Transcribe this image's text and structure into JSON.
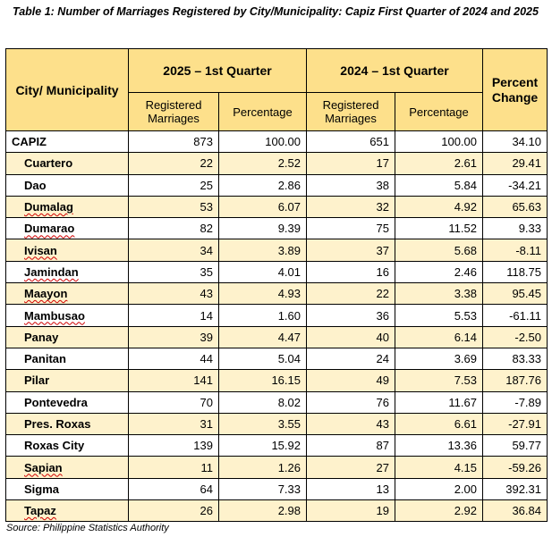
{
  "title": "Table 1: Number of Marriages Registered by City/Municipality: Capiz First Quarter of 2024 and 2025",
  "headers": {
    "city": "City/ Municipality",
    "group_2025": "2025 – 1st Quarter",
    "group_2024": "2024 – 1st Quarter",
    "percent_change": "Percent Change",
    "registered": "Registered Marriages",
    "percentage": "Percentage"
  },
  "rows": [
    {
      "name": "CAPIZ",
      "r2025": "873",
      "p2025": "100.00",
      "r2024": "651",
      "p2024": "100.00",
      "change": "34.10"
    },
    {
      "name": "Cuartero",
      "r2025": "22",
      "p2025": "2.52",
      "r2024": "17",
      "p2024": "2.61",
      "change": "29.41"
    },
    {
      "name": "Dao",
      "r2025": "25",
      "p2025": "2.86",
      "r2024": "38",
      "p2024": "5.84",
      "change": "-34.21"
    },
    {
      "name": "Dumalag",
      "r2025": "53",
      "p2025": "6.07",
      "r2024": "32",
      "p2024": "4.92",
      "change": "65.63"
    },
    {
      "name": "Dumarao",
      "r2025": "82",
      "p2025": "9.39",
      "r2024": "75",
      "p2024": "11.52",
      "change": "9.33"
    },
    {
      "name": "Ivisan",
      "r2025": "34",
      "p2025": "3.89",
      "r2024": "37",
      "p2024": "5.68",
      "change": "-8.11"
    },
    {
      "name": "Jamindan",
      "r2025": "35",
      "p2025": "4.01",
      "r2024": "16",
      "p2024": "2.46",
      "change": "118.75"
    },
    {
      "name": "Maayon",
      "r2025": "43",
      "p2025": "4.93",
      "r2024": "22",
      "p2024": "3.38",
      "change": "95.45"
    },
    {
      "name": "Mambusao",
      "r2025": "14",
      "p2025": "1.60",
      "r2024": "36",
      "p2024": "5.53",
      "change": "-61.11"
    },
    {
      "name": "Panay",
      "r2025": "39",
      "p2025": "4.47",
      "r2024": "40",
      "p2024": "6.14",
      "change": "-2.50"
    },
    {
      "name": "Panitan",
      "r2025": "44",
      "p2025": "5.04",
      "r2024": "24",
      "p2024": "3.69",
      "change": "83.33"
    },
    {
      "name": "Pilar",
      "r2025": "141",
      "p2025": "16.15",
      "r2024": "49",
      "p2024": "7.53",
      "change": "187.76"
    },
    {
      "name": "Pontevedra",
      "r2025": "70",
      "p2025": "8.02",
      "r2024": "76",
      "p2024": "11.67",
      "change": "-7.89"
    },
    {
      "name": "Pres. Roxas",
      "r2025": "31",
      "p2025": "3.55",
      "r2024": "43",
      "p2024": "6.61",
      "change": "-27.91"
    },
    {
      "name": "Roxas City",
      "r2025": "139",
      "p2025": "15.92",
      "r2024": "87",
      "p2024": "13.36",
      "change": "59.77"
    },
    {
      "name": "Sapian",
      "r2025": "11",
      "p2025": "1.26",
      "r2024": "27",
      "p2024": "4.15",
      "change": "-59.26"
    },
    {
      "name": "Sigma",
      "r2025": "64",
      "p2025": "7.33",
      "r2024": "13",
      "p2024": "2.00",
      "change": "392.31"
    },
    {
      "name": "Tapaz",
      "r2025": "26",
      "p2025": "2.98",
      "r2024": "19",
      "p2024": "2.92",
      "change": "36.84"
    }
  ],
  "source": "Source: Philippine Statistics Authority",
  "colors": {
    "header_fill": "#fde08b",
    "alt_row_fill": "#fef2cc"
  }
}
